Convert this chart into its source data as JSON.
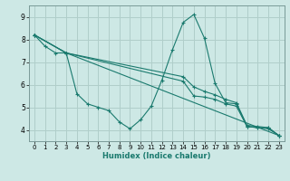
{
  "xlabel": "Humidex (Indice chaleur)",
  "bg_color": "#cde8e5",
  "grid_color": "#b0ceca",
  "line_color": "#1a7a6e",
  "xlim": [
    -0.5,
    23.5
  ],
  "ylim": [
    3.5,
    9.5
  ],
  "xticks": [
    0,
    1,
    2,
    3,
    4,
    5,
    6,
    7,
    8,
    9,
    10,
    11,
    12,
    13,
    14,
    15,
    16,
    17,
    18,
    19,
    20,
    21,
    22,
    23
  ],
  "yticks": [
    4,
    5,
    6,
    7,
    8,
    9
  ],
  "lines": [
    {
      "x": [
        0,
        1,
        2,
        3,
        4,
        5,
        6,
        7,
        8,
        9,
        10,
        11,
        12,
        13,
        14,
        15,
        16,
        17,
        18,
        19,
        20,
        21,
        22,
        23
      ],
      "y": [
        8.2,
        7.7,
        7.4,
        7.4,
        5.6,
        5.15,
        5.0,
        4.85,
        4.35,
        4.05,
        4.45,
        5.05,
        6.2,
        7.55,
        8.75,
        9.1,
        8.05,
        6.05,
        5.2,
        5.15,
        4.15,
        4.1,
        4.05,
        3.75
      ]
    },
    {
      "x": [
        0,
        3,
        14,
        15,
        16,
        17,
        18,
        19,
        20,
        21,
        22,
        23
      ],
      "y": [
        8.2,
        7.4,
        6.15,
        5.5,
        5.45,
        5.35,
        5.15,
        5.05,
        4.15,
        4.1,
        4.1,
        3.75
      ]
    },
    {
      "x": [
        0,
        3,
        14,
        15,
        16,
        17,
        18,
        19,
        20,
        21,
        22,
        23
      ],
      "y": [
        8.2,
        7.4,
        6.35,
        5.9,
        5.7,
        5.55,
        5.35,
        5.2,
        4.2,
        4.15,
        4.1,
        3.75
      ]
    },
    {
      "x": [
        0,
        3,
        23
      ],
      "y": [
        8.2,
        7.4,
        3.75
      ]
    }
  ]
}
